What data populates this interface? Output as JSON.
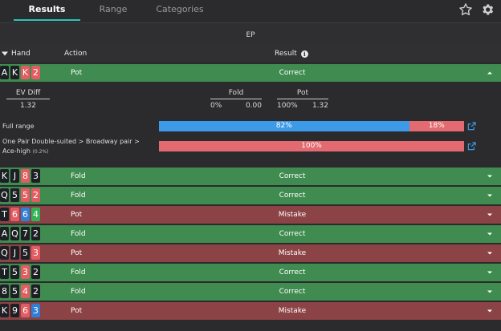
{
  "tabs": [
    {
      "label": "Results",
      "active": true
    },
    {
      "label": "Range",
      "active": false
    },
    {
      "label": "Categories",
      "active": false
    }
  ],
  "position_label": "EP",
  "table_header": {
    "hand": "Hand",
    "action": "Action",
    "result": "Result"
  },
  "colors": {
    "correct": "#3f8b50",
    "mistake": "#8c4346",
    "accent": "#2ec4b6",
    "spade": "#1d1f24",
    "heart": "#e25c62",
    "diamond": "#2f7fd6",
    "club": "#33b355",
    "bar_blue": "#3d9ae8",
    "bar_red": "#e26a70"
  },
  "expanded_row": {
    "cards": [
      {
        "rank": "A",
        "suit": "s"
      },
      {
        "rank": "K",
        "suit": "s"
      },
      {
        "rank": "K",
        "suit": "h"
      },
      {
        "rank": "2",
        "suit": "h"
      }
    ],
    "action": "Pot",
    "result": "Correct"
  },
  "details": {
    "ev_diff": {
      "label": "EV Diff",
      "value": "1.32"
    },
    "fold": {
      "label": "Fold",
      "pct": "0%",
      "ev": "0.00"
    },
    "pot": {
      "label": "Pot",
      "pct": "100%",
      "ev": "1.32"
    },
    "full_range": {
      "label": "Full range",
      "pot_pct": "82%",
      "fold_pct": "18%",
      "pot_fraction": 0.82,
      "fold_fraction": 0.18
    },
    "category": {
      "label": "One Pair Double-suited > Broadway pair > Ace-high",
      "share": "(0.2%)",
      "fold_pct": "100%",
      "fold_fraction": 1.0
    }
  },
  "rows": [
    {
      "cards": [
        {
          "rank": "K",
          "suit": "s"
        },
        {
          "rank": "J",
          "suit": "s"
        },
        {
          "rank": "8",
          "suit": "h"
        },
        {
          "rank": "3",
          "suit": "s"
        }
      ],
      "action": "Fold",
      "result": "Correct"
    },
    {
      "cards": [
        {
          "rank": "Q",
          "suit": "s"
        },
        {
          "rank": "5",
          "suit": "s"
        },
        {
          "rank": "5",
          "suit": "h"
        },
        {
          "rank": "2",
          "suit": "h"
        }
      ],
      "action": "Fold",
      "result": "Correct"
    },
    {
      "cards": [
        {
          "rank": "T",
          "suit": "s"
        },
        {
          "rank": "6",
          "suit": "h"
        },
        {
          "rank": "6",
          "suit": "d"
        },
        {
          "rank": "4",
          "suit": "c"
        }
      ],
      "action": "Pot",
      "result": "Mistake"
    },
    {
      "cards": [
        {
          "rank": "A",
          "suit": "s"
        },
        {
          "rank": "Q",
          "suit": "s"
        },
        {
          "rank": "7",
          "suit": "s"
        },
        {
          "rank": "2",
          "suit": "s"
        }
      ],
      "action": "Fold",
      "result": "Correct"
    },
    {
      "cards": [
        {
          "rank": "Q",
          "suit": "s"
        },
        {
          "rank": "J",
          "suit": "s"
        },
        {
          "rank": "5",
          "suit": "s"
        },
        {
          "rank": "3",
          "suit": "h"
        }
      ],
      "action": "Pot",
      "result": "Mistake"
    },
    {
      "cards": [
        {
          "rank": "T",
          "suit": "s"
        },
        {
          "rank": "5",
          "suit": "s"
        },
        {
          "rank": "3",
          "suit": "h"
        },
        {
          "rank": "2",
          "suit": "s"
        }
      ],
      "action": "Fold",
      "result": "Correct"
    },
    {
      "cards": [
        {
          "rank": "8",
          "suit": "s"
        },
        {
          "rank": "5",
          "suit": "s"
        },
        {
          "rank": "4",
          "suit": "h"
        },
        {
          "rank": "2",
          "suit": "s"
        }
      ],
      "action": "Fold",
      "result": "Correct"
    },
    {
      "cards": [
        {
          "rank": "K",
          "suit": "s"
        },
        {
          "rank": "9",
          "suit": "s"
        },
        {
          "rank": "6",
          "suit": "h"
        },
        {
          "rank": "3",
          "suit": "d"
        }
      ],
      "action": "Pot",
      "result": "Mistake"
    }
  ],
  "icons": {
    "star": "star-icon",
    "settings": "gear-icon",
    "sort": "caret-down-icon",
    "info": "info-icon",
    "collapse": "chevron-up-icon",
    "expand": "chevron-down-icon",
    "open": "external-link-icon"
  }
}
